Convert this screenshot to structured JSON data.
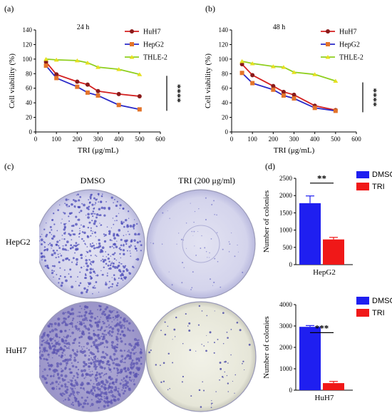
{
  "panels": {
    "a": "(a)",
    "b": "(b)",
    "c": "(c)",
    "d": "(d)"
  },
  "colors": {
    "huh7": "#d42020",
    "hepg2": "#2929c8",
    "thle2": "#8fcf1e",
    "dmso_bar": "#1f1ff0",
    "tri_bar": "#f01818",
    "plate_stain": "#4a4ab8"
  },
  "line_charts": [
    {
      "id": "a",
      "title": "24 h",
      "ylabel": "Cell viability (%)",
      "xlabel": "TRI (μg/mL)",
      "yticks": [
        0,
        20,
        40,
        60,
        80,
        100,
        120,
        140
      ],
      "xticks": [
        0,
        100,
        200,
        300,
        400,
        500,
        600
      ],
      "significance": "****",
      "legend": [
        "HuH7",
        "HepG2",
        "THLE-2"
      ]
    },
    {
      "id": "b",
      "title": "48  h",
      "ylabel": "Cell viability (%)",
      "xlabel": "TRI (μg/mL)",
      "yticks": [
        0,
        20,
        40,
        60,
        80,
        100,
        120,
        140
      ],
      "xticks": [
        0,
        100,
        200,
        300,
        400,
        500,
        600
      ],
      "significance": "****",
      "legend": [
        "HuH7",
        "HepG2",
        "THLE-2"
      ]
    }
  ],
  "chart_data": [
    {
      "type": "line",
      "title": "24 h",
      "xlabel": "TRI (μg/mL)",
      "ylabel": "Cell viability (%)",
      "xlim": [
        0,
        600
      ],
      "ylim": [
        0,
        140
      ],
      "x": [
        50,
        100,
        200,
        250,
        300,
        400,
        500
      ],
      "series": [
        {
          "name": "HuH7",
          "values": [
            96,
            79,
            69,
            65,
            56,
            52,
            49
          ]
        },
        {
          "name": "HepG2",
          "values": [
            91,
            74,
            62,
            54,
            50,
            37,
            31
          ]
        },
        {
          "name": "THLE-2",
          "values": [
            100,
            99,
            98,
            95,
            89,
            86,
            79
          ]
        }
      ],
      "legend": "top-right"
    },
    {
      "type": "line",
      "title": "48  h",
      "xlabel": "TRI (μg/mL)",
      "ylabel": "Cell viability (%)",
      "xlim": [
        0,
        600
      ],
      "ylim": [
        0,
        140
      ],
      "x": [
        50,
        100,
        200,
        250,
        300,
        400,
        500
      ],
      "series": [
        {
          "name": "HuH7",
          "values": [
            93,
            78,
            63,
            55,
            51,
            36,
            30
          ]
        },
        {
          "name": "HepG2",
          "values": [
            81,
            67,
            58,
            50,
            46,
            33,
            29
          ]
        },
        {
          "name": "THLE-2",
          "values": [
            97,
            94,
            90,
            89,
            82,
            79,
            70
          ]
        }
      ],
      "legend": "top-right"
    },
    {
      "type": "bar",
      "xlabel": "HepG2",
      "ylabel": "Number of colonies",
      "ylim": [
        0,
        2500
      ],
      "yticks": [
        0,
        500,
        1000,
        1500,
        2000,
        2500
      ],
      "categories": [
        "DMSO",
        "TRI"
      ],
      "values": [
        1780,
        730
      ],
      "errors": [
        210,
        60
      ],
      "significance": "**",
      "legend": "top-right"
    },
    {
      "type": "bar",
      "xlabel": "HuH7",
      "ylabel": "Number of colonies",
      "ylim": [
        0,
        4000
      ],
      "yticks": [
        0,
        1000,
        2000,
        3000,
        4000
      ],
      "categories": [
        "DMSO",
        "TRI"
      ],
      "values": [
        2960,
        330
      ],
      "errors": [
        60,
        80
      ],
      "significance": "***",
      "legend": "top-right"
    }
  ],
  "colony_panel": {
    "col_labels": [
      "DMSO",
      "TRI (200 μg/ml)"
    ],
    "row_labels": [
      "HepG2",
      "HuH7"
    ]
  }
}
